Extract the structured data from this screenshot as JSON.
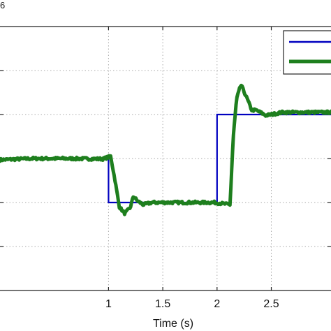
{
  "chart_data": {
    "type": "line",
    "title": "",
    "xlabel": "Time (s)",
    "ylabel": "",
    "corner_text": "6",
    "xlim": [
      0.0,
      3.05
    ],
    "ylim": [
      0,
      6
    ],
    "xticks": [
      1,
      1.5,
      2,
      2.5
    ],
    "xtick_labels": [
      "1",
      "1.5",
      "2",
      "2.5"
    ],
    "yticks": [
      1,
      2,
      3,
      4,
      5
    ],
    "grid": true,
    "legend": {
      "placement": "top-right",
      "entries": [
        "",
        ""
      ]
    },
    "series": [
      {
        "color": "#0000c0",
        "style": "step",
        "x": [
          0.0,
          1.0,
          1.0,
          2.0,
          2.0,
          3.05
        ],
        "y": [
          3.0,
          3.0,
          2.0,
          2.0,
          4.0,
          4.0
        ]
      },
      {
        "color": "#1e7f1e",
        "style": "noisy",
        "x": [
          0.0,
          0.3,
          0.6,
          0.95,
          1.02,
          1.06,
          1.1,
          1.15,
          1.2,
          1.23,
          1.26,
          1.32,
          1.4,
          1.6,
          1.8,
          1.98,
          2.12,
          2.13,
          2.15,
          2.18,
          2.22,
          2.27,
          2.32,
          2.36,
          2.42,
          2.45,
          2.5,
          2.6,
          3.05
        ],
        "y": [
          2.97,
          3.0,
          3.0,
          2.99,
          3.05,
          2.5,
          1.9,
          1.75,
          1.88,
          2.15,
          2.05,
          1.95,
          2.0,
          2.0,
          2.0,
          2.0,
          1.95,
          2.5,
          3.5,
          4.35,
          4.68,
          4.4,
          4.1,
          4.1,
          4.02,
          3.98,
          4.0,
          4.05,
          4.05
        ]
      }
    ]
  }
}
